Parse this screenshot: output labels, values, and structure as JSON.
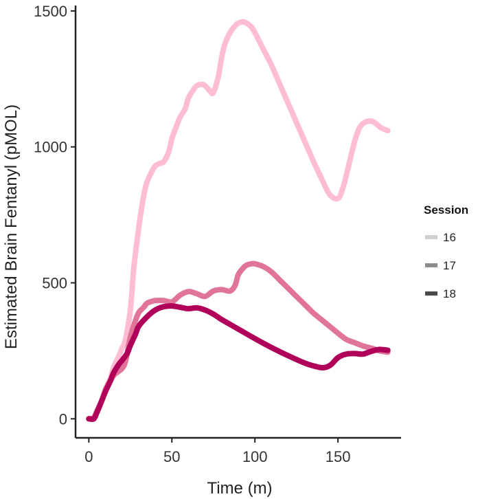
{
  "chart_data": {
    "type": "line",
    "title": "",
    "xlabel": "Time (m)",
    "ylabel": "Estimated Brain Fentanyl (pMOL)",
    "xlim": [
      -8,
      188
    ],
    "ylim": [
      -70,
      1520
    ],
    "x_ticks": [
      0,
      50,
      100,
      150
    ],
    "x_tick_labels": [
      "0",
      "50",
      "100",
      "150"
    ],
    "y_ticks": [
      0,
      500,
      1000,
      1500
    ],
    "y_tick_labels": [
      "0",
      "500",
      "1000",
      "1500"
    ],
    "grid": false,
    "legend": {
      "title": "Session",
      "placement": "right",
      "entries": [
        {
          "label": "16",
          "color": "#d0d0d0"
        },
        {
          "label": "17",
          "color": "#8c8c8c"
        },
        {
          "label": "18",
          "color": "#4a4a4a"
        }
      ]
    },
    "series": [
      {
        "name": "16",
        "color": "#ffbdd4",
        "x": [
          0,
          3,
          5,
          8,
          10,
          13,
          15,
          18,
          20,
          22,
          25,
          27,
          30,
          33,
          35,
          38,
          40,
          43,
          45,
          48,
          50,
          53,
          55,
          58,
          60,
          63,
          65,
          68,
          70,
          73,
          75,
          78,
          80,
          82,
          85,
          88,
          90,
          93,
          95,
          98,
          100,
          105,
          110,
          115,
          120,
          125,
          130,
          135,
          140,
          145,
          150,
          153,
          156,
          160,
          163,
          166,
          170,
          173,
          176,
          180
        ],
        "y": [
          0,
          5,
          30,
          70,
          110,
          150,
          190,
          230,
          260,
          290,
          400,
          550,
          700,
          820,
          870,
          910,
          930,
          940,
          945,
          980,
          1030,
          1080,
          1110,
          1140,
          1180,
          1210,
          1225,
          1230,
          1225,
          1205,
          1200,
          1260,
          1330,
          1380,
          1420,
          1445,
          1455,
          1460,
          1455,
          1440,
          1420,
          1360,
          1300,
          1230,
          1160,
          1090,
          1020,
          950,
          885,
          825,
          810,
          850,
          920,
          1020,
          1070,
          1090,
          1095,
          1085,
          1070,
          1060
        ]
      },
      {
        "name": "17",
        "color": "#e07599",
        "x": [
          0,
          3,
          5,
          8,
          10,
          13,
          15,
          18,
          20,
          22,
          25,
          28,
          30,
          33,
          35,
          38,
          40,
          45,
          50,
          55,
          60,
          65,
          70,
          75,
          80,
          85,
          88,
          90,
          93,
          95,
          98,
          100,
          105,
          110,
          115,
          120,
          125,
          130,
          135,
          140,
          145,
          150,
          155,
          160,
          165,
          170,
          175,
          180
        ],
        "y": [
          0,
          5,
          30,
          70,
          105,
          140,
          160,
          175,
          185,
          210,
          300,
          360,
          390,
          410,
          425,
          432,
          435,
          435,
          430,
          455,
          468,
          460,
          450,
          470,
          475,
          470,
          490,
          530,
          555,
          565,
          570,
          570,
          560,
          540,
          510,
          480,
          450,
          420,
          390,
          365,
          340,
          315,
          292,
          280,
          268,
          260,
          250,
          245
        ]
      },
      {
        "name": "18",
        "color": "#b0005a",
        "x": [
          0,
          3,
          5,
          8,
          10,
          13,
          15,
          18,
          20,
          23,
          25,
          28,
          30,
          35,
          40,
          45,
          50,
          55,
          60,
          65,
          70,
          75,
          80,
          90,
          100,
          110,
          120,
          130,
          135,
          140,
          143,
          146,
          150,
          155,
          160,
          165,
          170,
          175,
          180
        ],
        "y": [
          0,
          0,
          25,
          70,
          100,
          140,
          170,
          200,
          215,
          240,
          270,
          310,
          340,
          375,
          400,
          412,
          415,
          410,
          405,
          408,
          400,
          385,
          365,
          330,
          295,
          262,
          232,
          205,
          195,
          188,
          190,
          200,
          225,
          238,
          240,
          238,
          248,
          255,
          252
        ]
      }
    ]
  }
}
